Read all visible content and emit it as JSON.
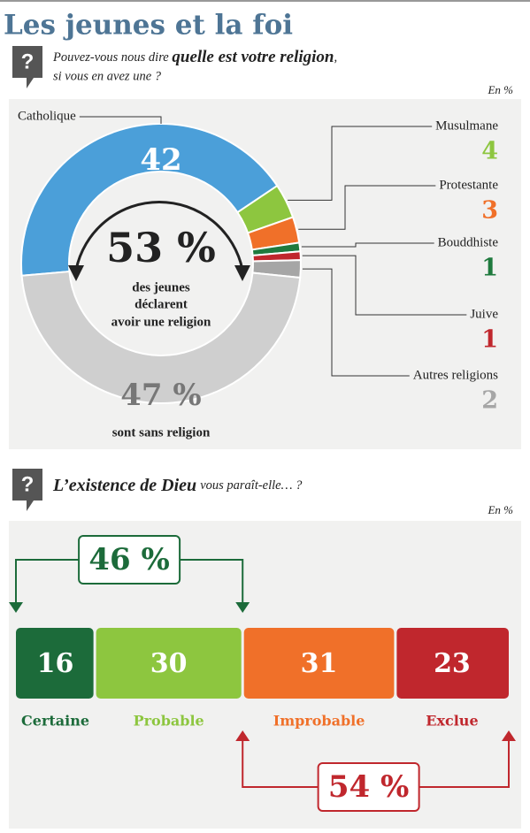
{
  "title": "Les jeunes et la foi",
  "chart_data": [
    {
      "type": "donut",
      "question_prefix": "Pouvez-vous nous dire",
      "question_emphasis": "quelle est votre religion",
      "question_suffix": ",",
      "question_line2": "si vous en avez une ?",
      "unit_note": "En %",
      "categories": [
        "Catholique",
        "Musulmane",
        "Protestante",
        "Bouddhiste",
        "Juive",
        "Autres religions",
        "sont sans religion"
      ],
      "values": [
        42,
        4,
        3,
        1,
        1,
        2,
        47
      ],
      "value_labels": [
        "42",
        "4",
        "3",
        "1",
        "1",
        "2",
        "47 %"
      ],
      "colors": [
        "#4b9fd9",
        "#8dc63f",
        "#f07029",
        "#1f7a3e",
        "#c0272d",
        "#a6a6a6",
        "#cfcfcf"
      ],
      "center_label": "53 %",
      "center_text": [
        "des jeunes",
        "déclarent",
        "avoir une religion"
      ]
    },
    {
      "type": "stacked-bar",
      "question_emphasis": "L’existence de Dieu",
      "question_suffix": "vous paraît-elle… ?",
      "unit_note": "En %",
      "categories": [
        "Certaine",
        "Probable",
        "Improbable",
        "Exclue"
      ],
      "values": [
        16,
        30,
        31,
        23
      ],
      "colors": [
        "#1c6b3a",
        "#8dc63f",
        "#f07029",
        "#c0272d"
      ],
      "group_labels": [
        "46 %",
        "54 %"
      ]
    }
  ]
}
